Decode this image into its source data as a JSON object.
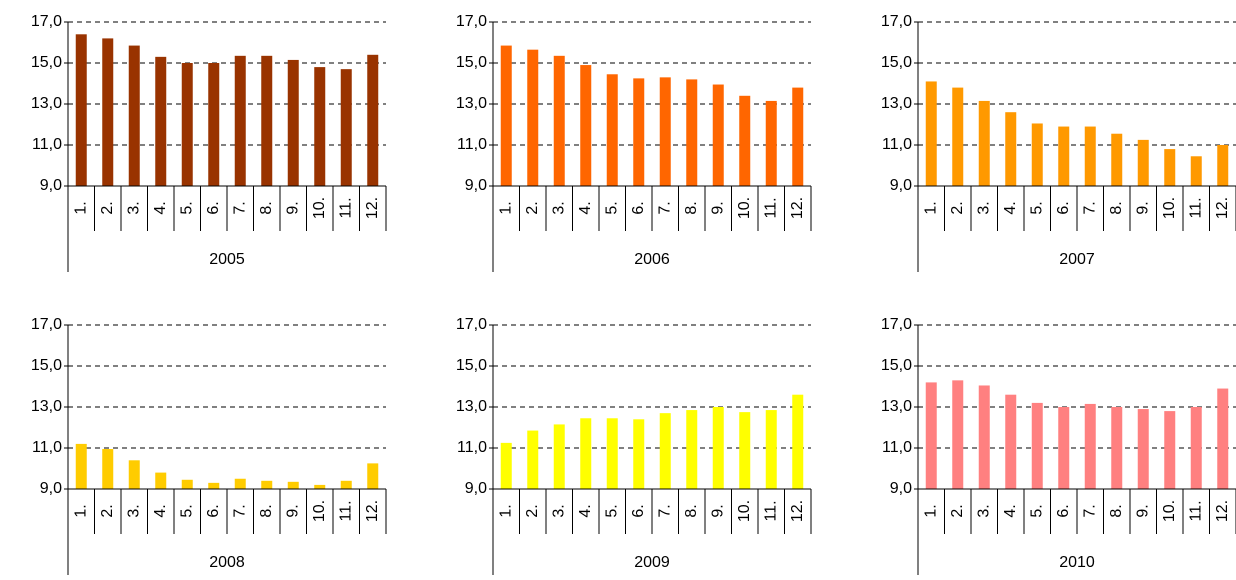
{
  "chart_data": [
    {
      "type": "bar",
      "group": "2005",
      "categories": [
        "1.",
        "2.",
        "3.",
        "4.",
        "5.",
        "6.",
        "7.",
        "8.",
        "9.",
        "10.",
        "11.",
        "12."
      ],
      "values": [
        16.4,
        16.2,
        15.85,
        15.3,
        15.0,
        15.0,
        15.35,
        15.35,
        15.15,
        14.8,
        14.7,
        15.4
      ],
      "color": "#993300",
      "ylim": [
        9,
        17
      ],
      "yticks": [
        {
          "value": 9,
          "label": "9,0"
        },
        {
          "value": 11,
          "label": "11,0"
        },
        {
          "value": 13,
          "label": "13,0"
        },
        {
          "value": 15,
          "label": "15,0"
        },
        {
          "value": 17,
          "label": "17,0"
        }
      ],
      "grid": true
    },
    {
      "type": "bar",
      "group": "2006",
      "categories": [
        "1.",
        "2.",
        "3.",
        "4.",
        "5.",
        "6.",
        "7.",
        "8.",
        "9.",
        "10.",
        "11.",
        "12."
      ],
      "values": [
        15.85,
        15.65,
        15.35,
        14.9,
        14.45,
        14.25,
        14.3,
        14.2,
        13.95,
        13.4,
        13.15,
        13.8
      ],
      "color": "#ff6600",
      "ylim": [
        9,
        17
      ],
      "yticks": [
        {
          "value": 9,
          "label": "9,0"
        },
        {
          "value": 11,
          "label": "11,0"
        },
        {
          "value": 13,
          "label": "13,0"
        },
        {
          "value": 15,
          "label": "15,0"
        },
        {
          "value": 17,
          "label": "17,0"
        }
      ],
      "grid": true
    },
    {
      "type": "bar",
      "group": "2007",
      "categories": [
        "1.",
        "2.",
        "3.",
        "4.",
        "5.",
        "6.",
        "7.",
        "8.",
        "9.",
        "10.",
        "11.",
        "12."
      ],
      "values": [
        14.1,
        13.8,
        13.15,
        12.6,
        12.05,
        11.9,
        11.9,
        11.55,
        11.25,
        10.8,
        10.45,
        11.0
      ],
      "color": "#ff9900",
      "ylim": [
        9,
        17
      ],
      "yticks": [
        {
          "value": 9,
          "label": "9,0"
        },
        {
          "value": 11,
          "label": "11,0"
        },
        {
          "value": 13,
          "label": "13,0"
        },
        {
          "value": 15,
          "label": "15,0"
        },
        {
          "value": 17,
          "label": "17,0"
        }
      ],
      "grid": true
    },
    {
      "type": "bar",
      "group": "2008",
      "categories": [
        "1.",
        "2.",
        "3.",
        "4.",
        "5.",
        "6.",
        "7.",
        "8.",
        "9.",
        "10.",
        "11.",
        "12."
      ],
      "values": [
        11.2,
        10.95,
        10.4,
        9.8,
        9.45,
        9.3,
        9.5,
        9.4,
        9.35,
        9.2,
        9.4,
        10.25
      ],
      "color": "#ffcc00",
      "ylim": [
        9,
        17
      ],
      "yticks": [
        {
          "value": 9,
          "label": "9,0"
        },
        {
          "value": 11,
          "label": "11,0"
        },
        {
          "value": 13,
          "label": "13,0"
        },
        {
          "value": 15,
          "label": "15,0"
        },
        {
          "value": 17,
          "label": "17,0"
        }
      ],
      "grid": true
    },
    {
      "type": "bar",
      "group": "2009",
      "categories": [
        "1.",
        "2.",
        "3.",
        "4.",
        "5.",
        "6.",
        "7.",
        "8.",
        "9.",
        "10.",
        "11.",
        "12."
      ],
      "values": [
        11.25,
        11.85,
        12.15,
        12.45,
        12.45,
        12.4,
        12.7,
        12.85,
        13.0,
        12.75,
        12.85,
        13.6
      ],
      "color": "#ffff00",
      "ylim": [
        9,
        17
      ],
      "yticks": [
        {
          "value": 9,
          "label": "9,0"
        },
        {
          "value": 11,
          "label": "11,0"
        },
        {
          "value": 13,
          "label": "13,0"
        },
        {
          "value": 15,
          "label": "15,0"
        },
        {
          "value": 17,
          "label": "17,0"
        }
      ],
      "grid": true
    },
    {
      "type": "bar",
      "group": "2010",
      "categories": [
        "1.",
        "2.",
        "3.",
        "4.",
        "5.",
        "6.",
        "7.",
        "8.",
        "9.",
        "10.",
        "11.",
        "12."
      ],
      "values": [
        14.2,
        14.3,
        14.05,
        13.6,
        13.2,
        13.0,
        13.15,
        13.0,
        12.9,
        12.8,
        13.0,
        13.9
      ],
      "color": "#ff8080",
      "ylim": [
        9,
        17
      ],
      "yticks": [
        {
          "value": 9,
          "label": "9,0"
        },
        {
          "value": 11,
          "label": "11,0"
        },
        {
          "value": 13,
          "label": "13,0"
        },
        {
          "value": 15,
          "label": "15,0"
        },
        {
          "value": 17,
          "label": "17,0"
        }
      ],
      "grid": true
    }
  ]
}
